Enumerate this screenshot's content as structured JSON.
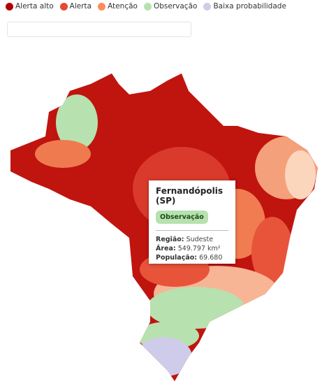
{
  "legend": {
    "items": [
      {
        "label": "Alerta alto",
        "color": "#b30000"
      },
      {
        "label": "Alerta",
        "color": "#e34a33"
      },
      {
        "label": "Atenção",
        "color": "#fc8d59"
      },
      {
        "label": "Observação",
        "color": "#b7e1ae"
      },
      {
        "label": "Baixa probabilidade",
        "color": "#cfcbea"
      }
    ]
  },
  "tooltip": {
    "title": "Fernandópolis (SP)",
    "badge": "Observação",
    "rows": [
      {
        "label": "Região:",
        "value": "Sudeste"
      },
      {
        "label": "Área:",
        "value": "549.797 km²"
      },
      {
        "label": "População:",
        "value": "69.680"
      }
    ]
  }
}
